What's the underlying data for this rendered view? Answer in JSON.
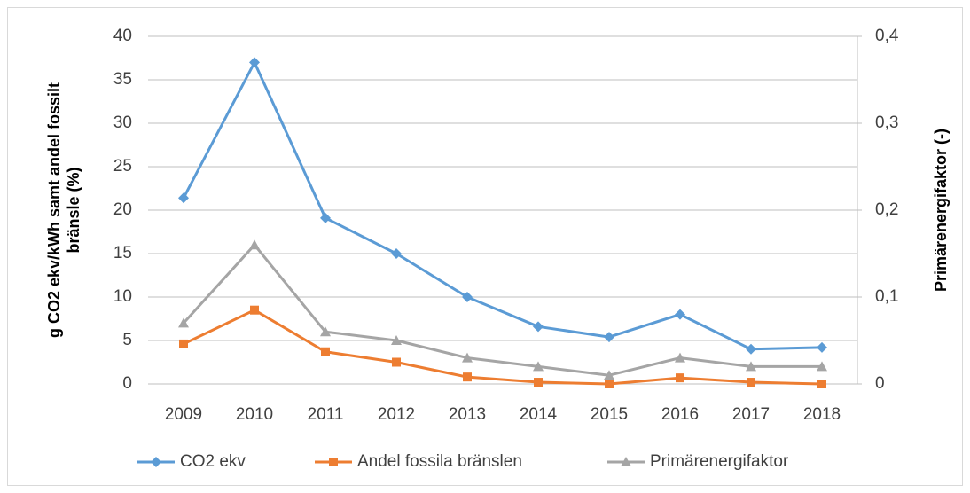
{
  "chart_data": {
    "type": "line",
    "ylabel": [
      "g CO2 ekv/kWh samt andel fossilt",
      "bränsle (%)"
    ],
    "y2label": "Primärenergifaktor (-)",
    "categories": [
      "2009",
      "2010",
      "2011",
      "2012",
      "2013",
      "2014",
      "2015",
      "2016",
      "2017",
      "2018"
    ],
    "series": [
      {
        "name": "CO2 ekv",
        "color": "#5b9bd5",
        "marker": "diamond",
        "axis": "y",
        "values": [
          21.4,
          37.0,
          19.1,
          15,
          10,
          6.6,
          5.4,
          8.0,
          4.0,
          4.2
        ]
      },
      {
        "name": "Andel fossila bränslen",
        "color": "#ed7d31",
        "marker": "square",
        "axis": "y",
        "values": [
          4.6,
          8.5,
          3.7,
          2.5,
          0.8,
          0.2,
          0,
          0.7,
          0.2,
          0
        ]
      },
      {
        "name": "Primärenergifaktor",
        "color": "#a5a5a5",
        "marker": "triangle",
        "axis": "y2",
        "values": [
          0.07,
          0.16,
          0.06,
          0.05,
          0.03,
          0.02,
          0.01,
          0.03,
          0.02,
          0.02
        ]
      }
    ],
    "ylim": [
      0,
      40
    ],
    "yticks": [
      0,
      5,
      10,
      15,
      20,
      25,
      30,
      35,
      40
    ],
    "y2lim": [
      0,
      0.4
    ],
    "y2ticks": [
      0,
      {
        "value": 0.1,
        "label": "0,1"
      },
      {
        "value": 0.2,
        "label": "0,2"
      },
      {
        "value": 0.3,
        "label": "0,3"
      },
      {
        "value": 0.4,
        "label": "0,4"
      }
    ],
    "grid": true,
    "legend": "bottom"
  }
}
